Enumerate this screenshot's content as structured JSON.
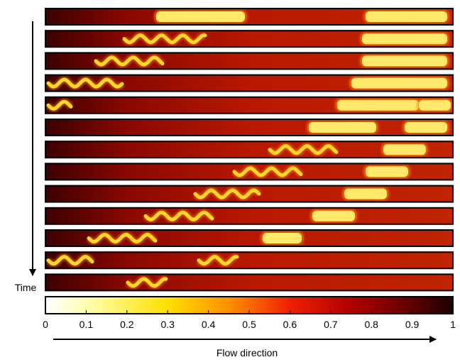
{
  "chart_data": {
    "type": "heatmap-strips",
    "ylabel": "Time",
    "xlabel": "Flow direction",
    "xlim": [
      0,
      1
    ],
    "xticks": [
      0,
      0.1,
      0.2,
      0.3,
      0.4,
      0.5,
      0.6,
      0.7,
      0.8,
      0.9,
      1
    ]
  }
}
